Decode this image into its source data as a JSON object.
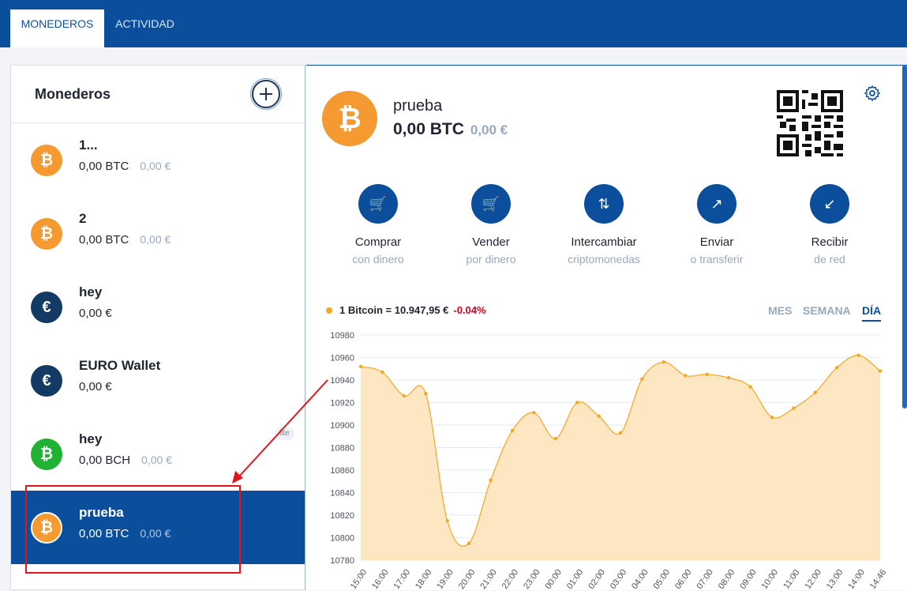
{
  "tabs": [
    {
      "label": "MONEDEROS",
      "active": true
    },
    {
      "label": "ACTIVIDAD",
      "active": false
    }
  ],
  "sidebar": {
    "title": "Monederos",
    "wallets": [
      {
        "name": "1...",
        "balance": "0,00 BTC",
        "fiat": "0,00 €",
        "coin": "btc",
        "icon": "bitcoin-icon"
      },
      {
        "name": "2",
        "balance": "0,00 BTC",
        "fiat": "0,00 €",
        "coin": "btc",
        "icon": "bitcoin-icon"
      },
      {
        "name": "hey",
        "balance": "0,00 €",
        "fiat": "",
        "coin": "eur",
        "icon": "euro-icon"
      },
      {
        "name": "EURO Wallet",
        "balance": "0,00 €",
        "fiat": "",
        "coin": "eur",
        "icon": "euro-icon"
      },
      {
        "name": "hey",
        "balance": "0,00 BCH",
        "fiat": "0,00 €",
        "coin": "bch",
        "icon": "bitcoin-cash-icon",
        "badge": "lite"
      },
      {
        "name": "prueba",
        "balance": "0,00 BTC",
        "fiat": "0,00 €",
        "coin": "btc",
        "icon": "bitcoin-icon",
        "selected": true
      }
    ]
  },
  "main": {
    "name": "prueba",
    "balance": "0,00 BTC",
    "fiat": "0,00 €",
    "actions": [
      {
        "label": "Comprar",
        "sub": "con dinero",
        "icon": "cart-in-icon",
        "glyph": "🛒"
      },
      {
        "label": "Vender",
        "sub": "por dinero",
        "icon": "cart-out-icon",
        "glyph": "🛒"
      },
      {
        "label": "Intercambiar",
        "sub": "criptomonedas",
        "icon": "swap-icon",
        "glyph": "⇅"
      },
      {
        "label": "Enviar",
        "sub": "o transferir",
        "icon": "send-arrow-icon",
        "glyph": "↗"
      },
      {
        "label": "Recibir",
        "sub": "de red",
        "icon": "receive-arrow-icon",
        "glyph": "↙"
      }
    ],
    "price_label": "1 Bitcoin = 10.947,95 €",
    "price_change": "-0.04%",
    "ranges": [
      {
        "label": "MES",
        "active": false
      },
      {
        "label": "SEMANA",
        "active": false
      },
      {
        "label": "DÍA",
        "active": true
      }
    ]
  },
  "colors": {
    "primary": "#0b4f9c",
    "btc": "#f59a30",
    "eur": "#123a63",
    "bch": "#20b233",
    "line": "#f5a623",
    "fill": "#fde7c3",
    "negative": "#d0021b"
  },
  "chart_data": {
    "type": "area",
    "x": [
      "15:00",
      "16:00",
      "17:00",
      "18:00",
      "19:00",
      "20:00",
      "21:00",
      "22:00",
      "23:00",
      "00:00",
      "01:00",
      "02:00",
      "03:00",
      "04:00",
      "05:00",
      "06:00",
      "07:00",
      "08:00",
      "09:00",
      "10:00",
      "11:00",
      "12:00",
      "13:00",
      "14:00",
      "14:46"
    ],
    "values": [
      10952,
      10947,
      10926,
      10928,
      10815,
      10795,
      10851,
      10895,
      10911,
      10888,
      10920,
      10908,
      10893,
      10941,
      10956,
      10944,
      10945,
      10942,
      10934,
      10907,
      10915,
      10929,
      10951,
      10962,
      10948
    ],
    "ylim": [
      10780,
      10980
    ],
    "yticks": [
      10780,
      10800,
      10820,
      10840,
      10860,
      10880,
      10900,
      10920,
      10940,
      10960,
      10980
    ],
    "grid": true
  }
}
